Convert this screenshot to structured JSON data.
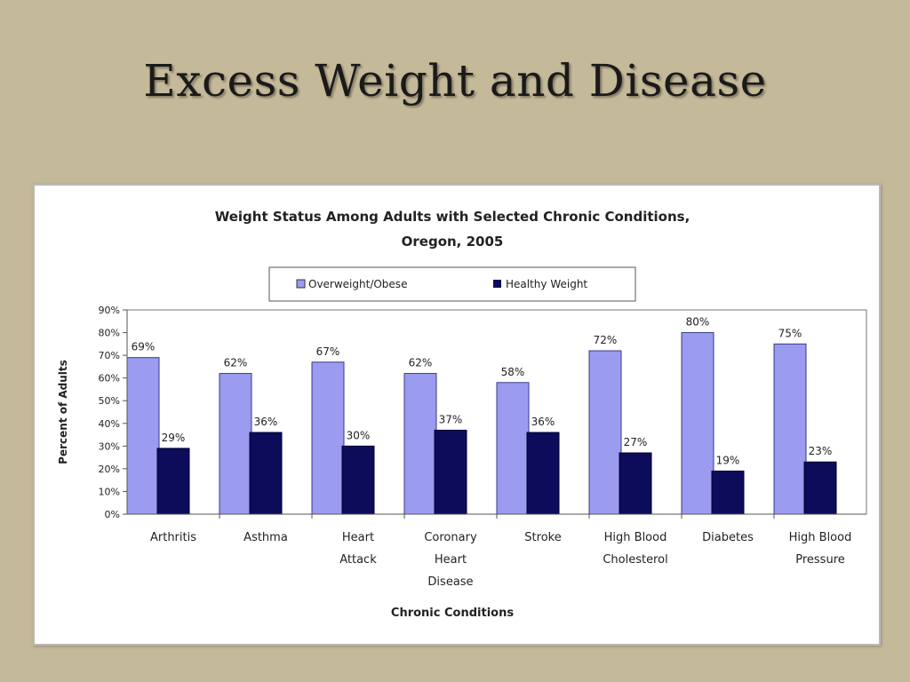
{
  "slide": {
    "title": "Excess Weight and Disease"
  },
  "chart_data": {
    "type": "bar",
    "title": "Weight Status Among Adults with Selected Chronic Conditions,",
    "subtitle": "Oregon, 2005",
    "xlabel": "Chronic Conditions",
    "ylabel": "Percent of Adults",
    "ylim": [
      0,
      90
    ],
    "y_ticks": [
      "0%",
      "10%",
      "20%",
      "30%",
      "40%",
      "50%",
      "60%",
      "70%",
      "80%",
      "90%"
    ],
    "grid": false,
    "legend_position": "top",
    "categories": [
      [
        "Arthritis"
      ],
      [
        "Asthma"
      ],
      [
        "Heart",
        "Attack"
      ],
      [
        "Coronary",
        "Heart",
        "Disease"
      ],
      [
        "Stroke"
      ],
      [
        "High Blood",
        "Cholesterol"
      ],
      [
        "Diabetes"
      ],
      [
        "High Blood",
        "Pressure"
      ]
    ],
    "series": [
      {
        "name": "Overweight/Obese",
        "color": "#9b9bef",
        "values": [
          69,
          62,
          67,
          62,
          58,
          72,
          80,
          75
        ],
        "labels": [
          "69%",
          "62%",
          "67%",
          "62%",
          "58%",
          "72%",
          "80%",
          "75%"
        ]
      },
      {
        "name": "Healthy Weight",
        "color": "#0c0c5a",
        "values": [
          29,
          36,
          30,
          37,
          36,
          27,
          19,
          23
        ],
        "labels": [
          "29%",
          "36%",
          "30%",
          "37%",
          "36%",
          "27%",
          "19%",
          "23%"
        ]
      }
    ]
  }
}
